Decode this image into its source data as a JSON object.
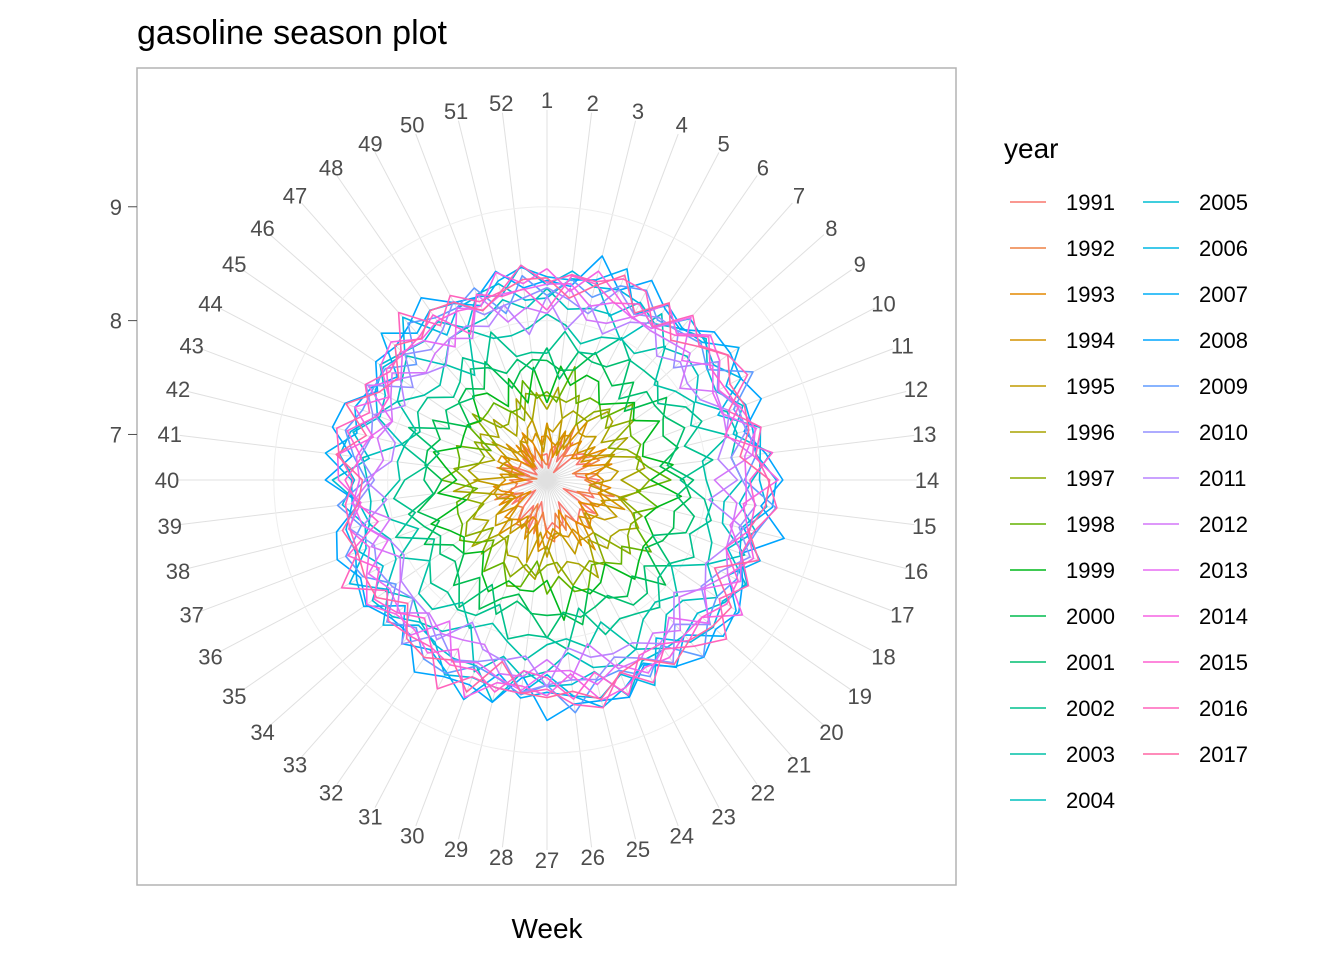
{
  "chart_data": {
    "type": "line",
    "subtype": "polar-season-plot",
    "title": "gasoline season plot",
    "xlabel": "Week",
    "ylabel": "",
    "x_ticks": [
      1,
      2,
      3,
      4,
      5,
      6,
      7,
      8,
      9,
      10,
      11,
      12,
      13,
      14,
      15,
      16,
      17,
      18,
      19,
      20,
      21,
      22,
      23,
      24,
      25,
      26,
      27,
      28,
      29,
      30,
      31,
      32,
      33,
      34,
      35,
      36,
      37,
      38,
      39,
      40,
      41,
      42,
      43,
      44,
      45,
      46,
      47,
      48,
      49,
      50,
      51,
      52
    ],
    "y_ticks": [
      7,
      8,
      9
    ],
    "ylim": [
      6.6,
      9.85
    ],
    "legend_title": "year",
    "legend_position": "right",
    "legend_columns": 2,
    "grid": true,
    "series": [
      {
        "name": "1991",
        "color": "#F8766D",
        "base": 6.9
      },
      {
        "name": "1992",
        "color": "#EE8044",
        "base": 6.95
      },
      {
        "name": "1993",
        "color": "#E38900",
        "base": 7.0
      },
      {
        "name": "1994",
        "color": "#D49200",
        "base": 7.05
      },
      {
        "name": "1995",
        "color": "#C09B00",
        "base": 7.1
      },
      {
        "name": "1996",
        "color": "#A8A400",
        "base": 7.3
      },
      {
        "name": "1997",
        "color": "#8BAB00",
        "base": 7.35
      },
      {
        "name": "1998",
        "color": "#64B200",
        "base": 7.45
      },
      {
        "name": "1999",
        "color": "#00B81B",
        "base": 7.55
      },
      {
        "name": "2000",
        "color": "#00BB4E",
        "base": 7.7
      },
      {
        "name": "2001",
        "color": "#00BE70",
        "base": 7.75
      },
      {
        "name": "2002",
        "color": "#00C08E",
        "base": 7.9
      },
      {
        "name": "2003",
        "color": "#00C1A7",
        "base": 8.0
      },
      {
        "name": "2004",
        "color": "#00C0BD",
        "base": 8.2
      },
      {
        "name": "2005",
        "color": "#00BDD2",
        "base": 8.35
      },
      {
        "name": "2006",
        "color": "#00B7E4",
        "base": 8.4
      },
      {
        "name": "2007",
        "color": "#00AEF6",
        "base": 8.45
      },
      {
        "name": "2008",
        "color": "#00A5FF",
        "base": 8.5
      },
      {
        "name": "2009",
        "color": "#619CFF",
        "base": 8.4
      },
      {
        "name": "2010",
        "color": "#9390FF",
        "base": 8.3
      },
      {
        "name": "2011",
        "color": "#B884FF",
        "base": 8.15
      },
      {
        "name": "2012",
        "color": "#D376F9",
        "base": 8.2
      },
      {
        "name": "2013",
        "color": "#E76BF3",
        "base": 8.3
      },
      {
        "name": "2014",
        "color": "#F564E3",
        "base": 8.4
      },
      {
        "name": "2015",
        "color": "#FD61D1",
        "base": 8.35
      },
      {
        "name": "2016",
        "color": "#FF63BC",
        "base": 8.45
      },
      {
        "name": "2017",
        "color": "#FF67A4",
        "base": 8.4
      }
    ]
  }
}
